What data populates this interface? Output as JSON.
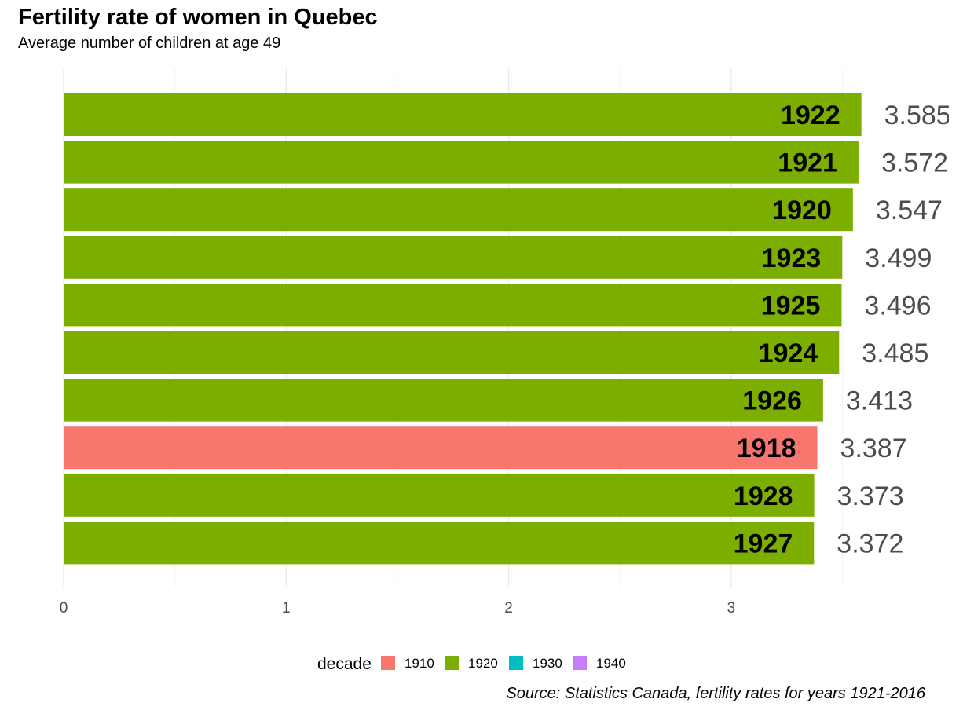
{
  "chart_data": {
    "type": "bar",
    "orientation": "horizontal",
    "title": "Fertility rate of women in Quebec",
    "subtitle": "Average number of children at age 49",
    "caption": "Source: Statistics Canada, fertility rates for years 1921-2016",
    "xlabel": "",
    "ylabel": "",
    "xlim": [
      0,
      3.6
    ],
    "xticks": [
      "0",
      "1",
      "2",
      "3"
    ],
    "grid": true,
    "legend": {
      "title": "decade",
      "position": "bottom",
      "entries": [
        {
          "label": "1910",
          "color": "#F8766D"
        },
        {
          "label": "1920",
          "color": "#7CAE00"
        },
        {
          "label": "1930",
          "color": "#00BFC4"
        },
        {
          "label": "1940",
          "color": "#C77CFF"
        }
      ]
    },
    "bars": [
      {
        "year": "1922",
        "value": 3.585,
        "value_label": "3.585",
        "decade": "1920"
      },
      {
        "year": "1921",
        "value": 3.572,
        "value_label": "3.572",
        "decade": "1920"
      },
      {
        "year": "1920",
        "value": 3.547,
        "value_label": "3.547",
        "decade": "1920"
      },
      {
        "year": "1923",
        "value": 3.499,
        "value_label": "3.499",
        "decade": "1920"
      },
      {
        "year": "1925",
        "value": 3.496,
        "value_label": "3.496",
        "decade": "1920"
      },
      {
        "year": "1924",
        "value": 3.485,
        "value_label": "3.485",
        "decade": "1920"
      },
      {
        "year": "1926",
        "value": 3.413,
        "value_label": "3.413",
        "decade": "1920"
      },
      {
        "year": "1918",
        "value": 3.387,
        "value_label": "3.387",
        "decade": "1910"
      },
      {
        "year": "1928",
        "value": 3.373,
        "value_label": "3.373",
        "decade": "1920"
      },
      {
        "year": "1927",
        "value": 3.372,
        "value_label": "3.372",
        "decade": "1920"
      }
    ]
  }
}
